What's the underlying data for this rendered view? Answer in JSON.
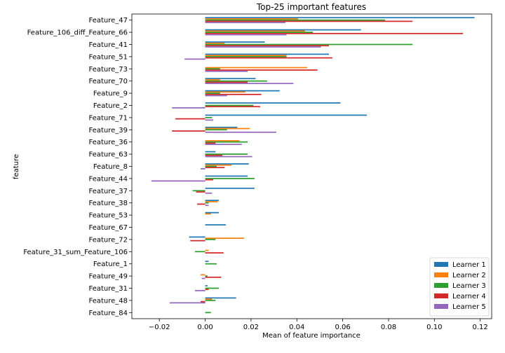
{
  "chart_data": {
    "type": "bar",
    "orientation": "horizontal",
    "title": "Top-25 important features",
    "xlabel": "Mean of feature importance",
    "ylabel": "feature",
    "xlim": [
      -0.032,
      0.125
    ],
    "xticks": [
      -0.02,
      0.0,
      0.02,
      0.04,
      0.06,
      0.08,
      0.1,
      0.12
    ],
    "xtick_labels": [
      "−0.02",
      "0.00",
      "0.02",
      "0.04",
      "0.06",
      "0.08",
      "0.10",
      "0.12"
    ],
    "grid": false,
    "legend_position": "lower-right",
    "categories": [
      "Feature_47",
      "Feature_106_diff_Feature_66",
      "Feature_41",
      "Feature_51",
      "Feature_73",
      "Feature_70",
      "Feature_9",
      "Feature_2",
      "Feature_71",
      "Feature_39",
      "Feature_36",
      "Feature_63",
      "Feature_8",
      "Feature_44",
      "Feature_37",
      "Feature_38",
      "Feature_53",
      "Feature_67",
      "Feature_72",
      "Feature_31_sum_Feature_106",
      "Feature_1",
      "Feature_49",
      "Feature_31",
      "Feature_48",
      "Feature_84"
    ],
    "series": [
      {
        "name": "Learner 1",
        "color": "#1f77b4",
        "values": [
          0.1175,
          0.068,
          0.026,
          0.054,
          0.0,
          0.022,
          0.0325,
          0.059,
          0.0705,
          0.014,
          0.0,
          0.0045,
          0.019,
          0.0185,
          0.0215,
          0.006,
          0.006,
          0.009,
          -0.007,
          0.0,
          0.0015,
          0.0,
          0.001,
          0.0135,
          0.0
        ]
      },
      {
        "name": "Learner 2",
        "color": "#ff7f0e",
        "values": [
          0.0405,
          0.0435,
          0.0085,
          0.0355,
          0.0445,
          0.0065,
          0.0175,
          0.0,
          0.0,
          0.0195,
          0.015,
          0.0,
          0.0115,
          0.0,
          0.0,
          0.0055,
          0.0025,
          0.0,
          0.017,
          0.0015,
          0.0,
          -0.002,
          0.0,
          0.003,
          0.0
        ]
      },
      {
        "name": "Learner 3",
        "color": "#2ca02c",
        "values": [
          0.0785,
          0.047,
          0.0905,
          0.0355,
          0.0065,
          0.027,
          0.0065,
          0.021,
          0.003,
          0.0095,
          0.0185,
          0.0185,
          0.005,
          0.0215,
          -0.0055,
          0.0015,
          0.0,
          0.0,
          0.0045,
          -0.0045,
          0.005,
          0.001,
          0.006,
          0.0045,
          0.0025
        ]
      },
      {
        "name": "Learner 4",
        "color": "#d62728",
        "values": [
          0.0905,
          0.1125,
          0.054,
          0.0555,
          0.049,
          0.0185,
          0.0245,
          0.024,
          -0.013,
          -0.0145,
          0.0045,
          0.0075,
          0.0085,
          0.0035,
          -0.004,
          -0.0035,
          0.0,
          0.0,
          -0.0065,
          0.008,
          0.0,
          0.007,
          0.0015,
          -0.002,
          0.0
        ]
      },
      {
        "name": "Learner 5",
        "color": "#9467bd",
        "values": [
          0.035,
          0.0355,
          0.0505,
          -0.009,
          0.0185,
          0.0385,
          0.0095,
          -0.0145,
          0.0035,
          0.031,
          0.016,
          0.0205,
          -0.002,
          -0.0235,
          0.003,
          0.0015,
          0.0,
          0.0,
          0.0,
          0.0,
          0.0,
          -0.0015,
          -0.0045,
          -0.0155,
          0.0
        ]
      }
    ]
  }
}
